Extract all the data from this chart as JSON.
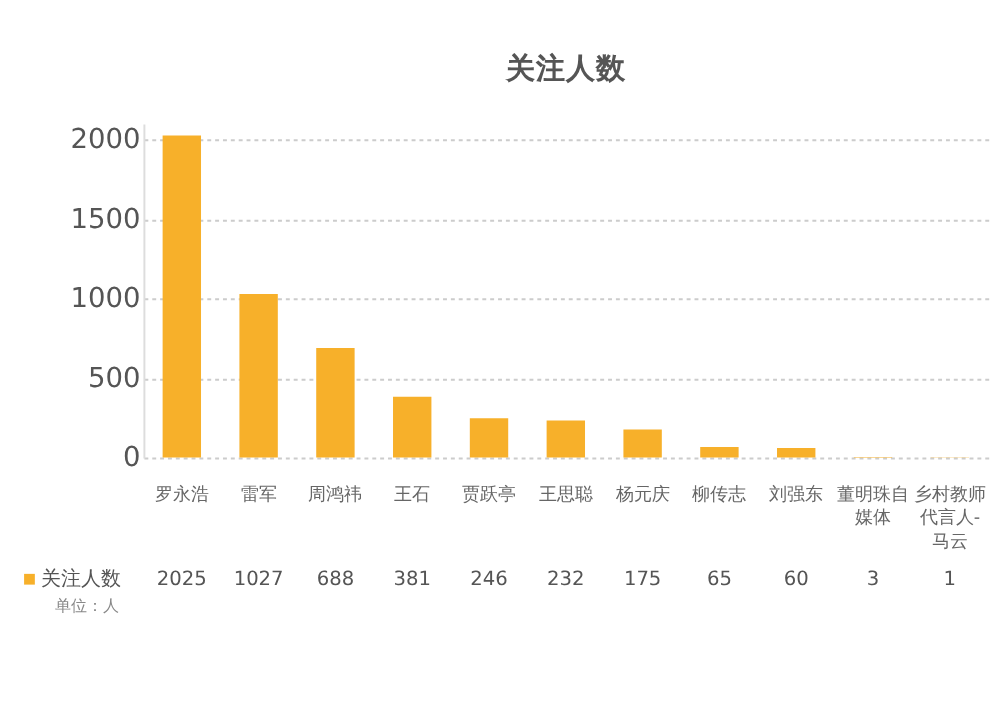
{
  "chart_data": {
    "type": "bar",
    "title": "关注人数",
    "categories": [
      "罗永浩",
      "雷军",
      "周鸿祎",
      "王石",
      "贾跃亭",
      "王思聪",
      "杨元庆",
      "柳传志",
      "刘强东",
      "董明珠自媒体",
      "乡村教师代言人-马云"
    ],
    "series": [
      {
        "name": "关注人数",
        "color": "#f7b02a",
        "values": [
          2025,
          1027,
          688,
          381,
          246,
          232,
          175,
          65,
          60,
          3,
          1
        ]
      }
    ],
    "ylim": [
      0,
      2100
    ],
    "yticks": [
      0,
      500,
      1000,
      1500,
      2000
    ],
    "grid": "y",
    "data_labels": true,
    "annotations": [
      "单位：人"
    ]
  }
}
